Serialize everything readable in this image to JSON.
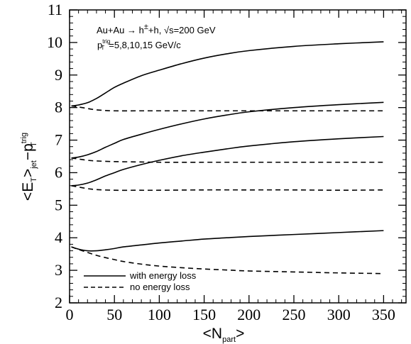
{
  "chart_data": {
    "type": "line",
    "title": "",
    "xlabel": "<N_part>",
    "ylabel": "<E_T>_jet − p_T^trig",
    "xlim": [
      0,
      375
    ],
    "ylim": [
      2,
      11
    ],
    "x_ticks": [
      0,
      50,
      100,
      150,
      200,
      250,
      300,
      350
    ],
    "y_ticks": [
      2,
      3,
      4,
      5,
      6,
      7,
      8,
      9,
      10,
      11
    ],
    "grid": false,
    "legend_position": "bottom-left",
    "annotations": {
      "reaction": "Au+Au → h",
      "reaction_sup": "±",
      "reaction_rest": "+h, √s=200 GeV",
      "pt_prefix": "p",
      "pt_sub": "T",
      "pt_sup": "trig",
      "pt_values": "=5,8,10,15 GeV/c"
    },
    "axis_label_parts": {
      "y_main_1": "<E",
      "y_sub_1": "T",
      "y_main_2": ">",
      "y_sub_2": "jet",
      "y_main_3": "−p",
      "y_sub_3": "T",
      "y_sup_3": "trig",
      "x_main_1": "<N",
      "x_sub_1": "part",
      "x_main_2": ">"
    },
    "legend": [
      {
        "label": "with energy loss",
        "style": "solid"
      },
      {
        "label": "no energy loss",
        "style": "dashed"
      }
    ],
    "series": [
      {
        "group": "with energy loss",
        "style": "solid",
        "x": [
          2,
          10,
          20,
          30,
          40,
          50,
          60,
          80,
          100,
          125,
          150,
          175,
          200,
          250,
          300,
          350
        ],
        "y": [
          8.05,
          8.08,
          8.15,
          8.28,
          8.45,
          8.62,
          8.75,
          8.98,
          9.15,
          9.35,
          9.52,
          9.65,
          9.75,
          9.88,
          9.96,
          10.02
        ]
      },
      {
        "group": "no energy loss",
        "style": "dashed",
        "x": [
          2,
          10,
          20,
          30,
          40,
          50,
          75,
          100,
          150,
          200,
          250,
          300,
          350
        ],
        "y": [
          8.05,
          8.02,
          7.97,
          7.93,
          7.91,
          7.9,
          7.9,
          7.9,
          7.9,
          7.9,
          7.9,
          7.9,
          7.9
        ]
      },
      {
        "group": "with energy loss",
        "style": "solid",
        "x": [
          2,
          10,
          20,
          30,
          40,
          50,
          60,
          80,
          100,
          125,
          150,
          175,
          200,
          250,
          300,
          350
        ],
        "y": [
          6.45,
          6.48,
          6.55,
          6.65,
          6.78,
          6.9,
          7.02,
          7.18,
          7.33,
          7.5,
          7.65,
          7.77,
          7.87,
          8.0,
          8.09,
          8.16
        ]
      },
      {
        "group": "no energy loss",
        "style": "dashed",
        "x": [
          2,
          10,
          20,
          30,
          50,
          75,
          100,
          150,
          200,
          250,
          300,
          350
        ],
        "y": [
          6.45,
          6.42,
          6.38,
          6.36,
          6.34,
          6.33,
          6.32,
          6.32,
          6.32,
          6.32,
          6.32,
          6.32
        ]
      },
      {
        "group": "with energy loss",
        "style": "solid",
        "x": [
          2,
          10,
          20,
          30,
          40,
          50,
          60,
          80,
          100,
          125,
          150,
          175,
          200,
          250,
          300,
          350
        ],
        "y": [
          5.6,
          5.62,
          5.68,
          5.78,
          5.9,
          6.0,
          6.1,
          6.25,
          6.38,
          6.52,
          6.63,
          6.73,
          6.82,
          6.95,
          7.04,
          7.11
        ]
      },
      {
        "group": "no energy loss",
        "style": "dashed",
        "x": [
          2,
          10,
          20,
          30,
          50,
          75,
          100,
          150,
          200,
          250,
          300,
          350
        ],
        "y": [
          5.6,
          5.56,
          5.51,
          5.48,
          5.46,
          5.46,
          5.46,
          5.47,
          5.47,
          5.47,
          5.46,
          5.47
        ]
      },
      {
        "group": "with energy loss",
        "style": "solid",
        "x": [
          2,
          10,
          20,
          30,
          40,
          50,
          60,
          80,
          100,
          125,
          150,
          175,
          200,
          250,
          300,
          350
        ],
        "y": [
          3.72,
          3.65,
          3.6,
          3.6,
          3.63,
          3.67,
          3.72,
          3.78,
          3.84,
          3.9,
          3.96,
          4.0,
          4.04,
          4.1,
          4.16,
          4.22
        ]
      },
      {
        "group": "no energy loss",
        "style": "dashed",
        "x": [
          2,
          10,
          20,
          30,
          40,
          50,
          60,
          80,
          100,
          125,
          150,
          175,
          200,
          250,
          300,
          350
        ],
        "y": [
          3.72,
          3.64,
          3.55,
          3.46,
          3.39,
          3.33,
          3.27,
          3.19,
          3.13,
          3.08,
          3.04,
          3.01,
          2.98,
          2.95,
          2.92,
          2.9
        ]
      }
    ]
  }
}
